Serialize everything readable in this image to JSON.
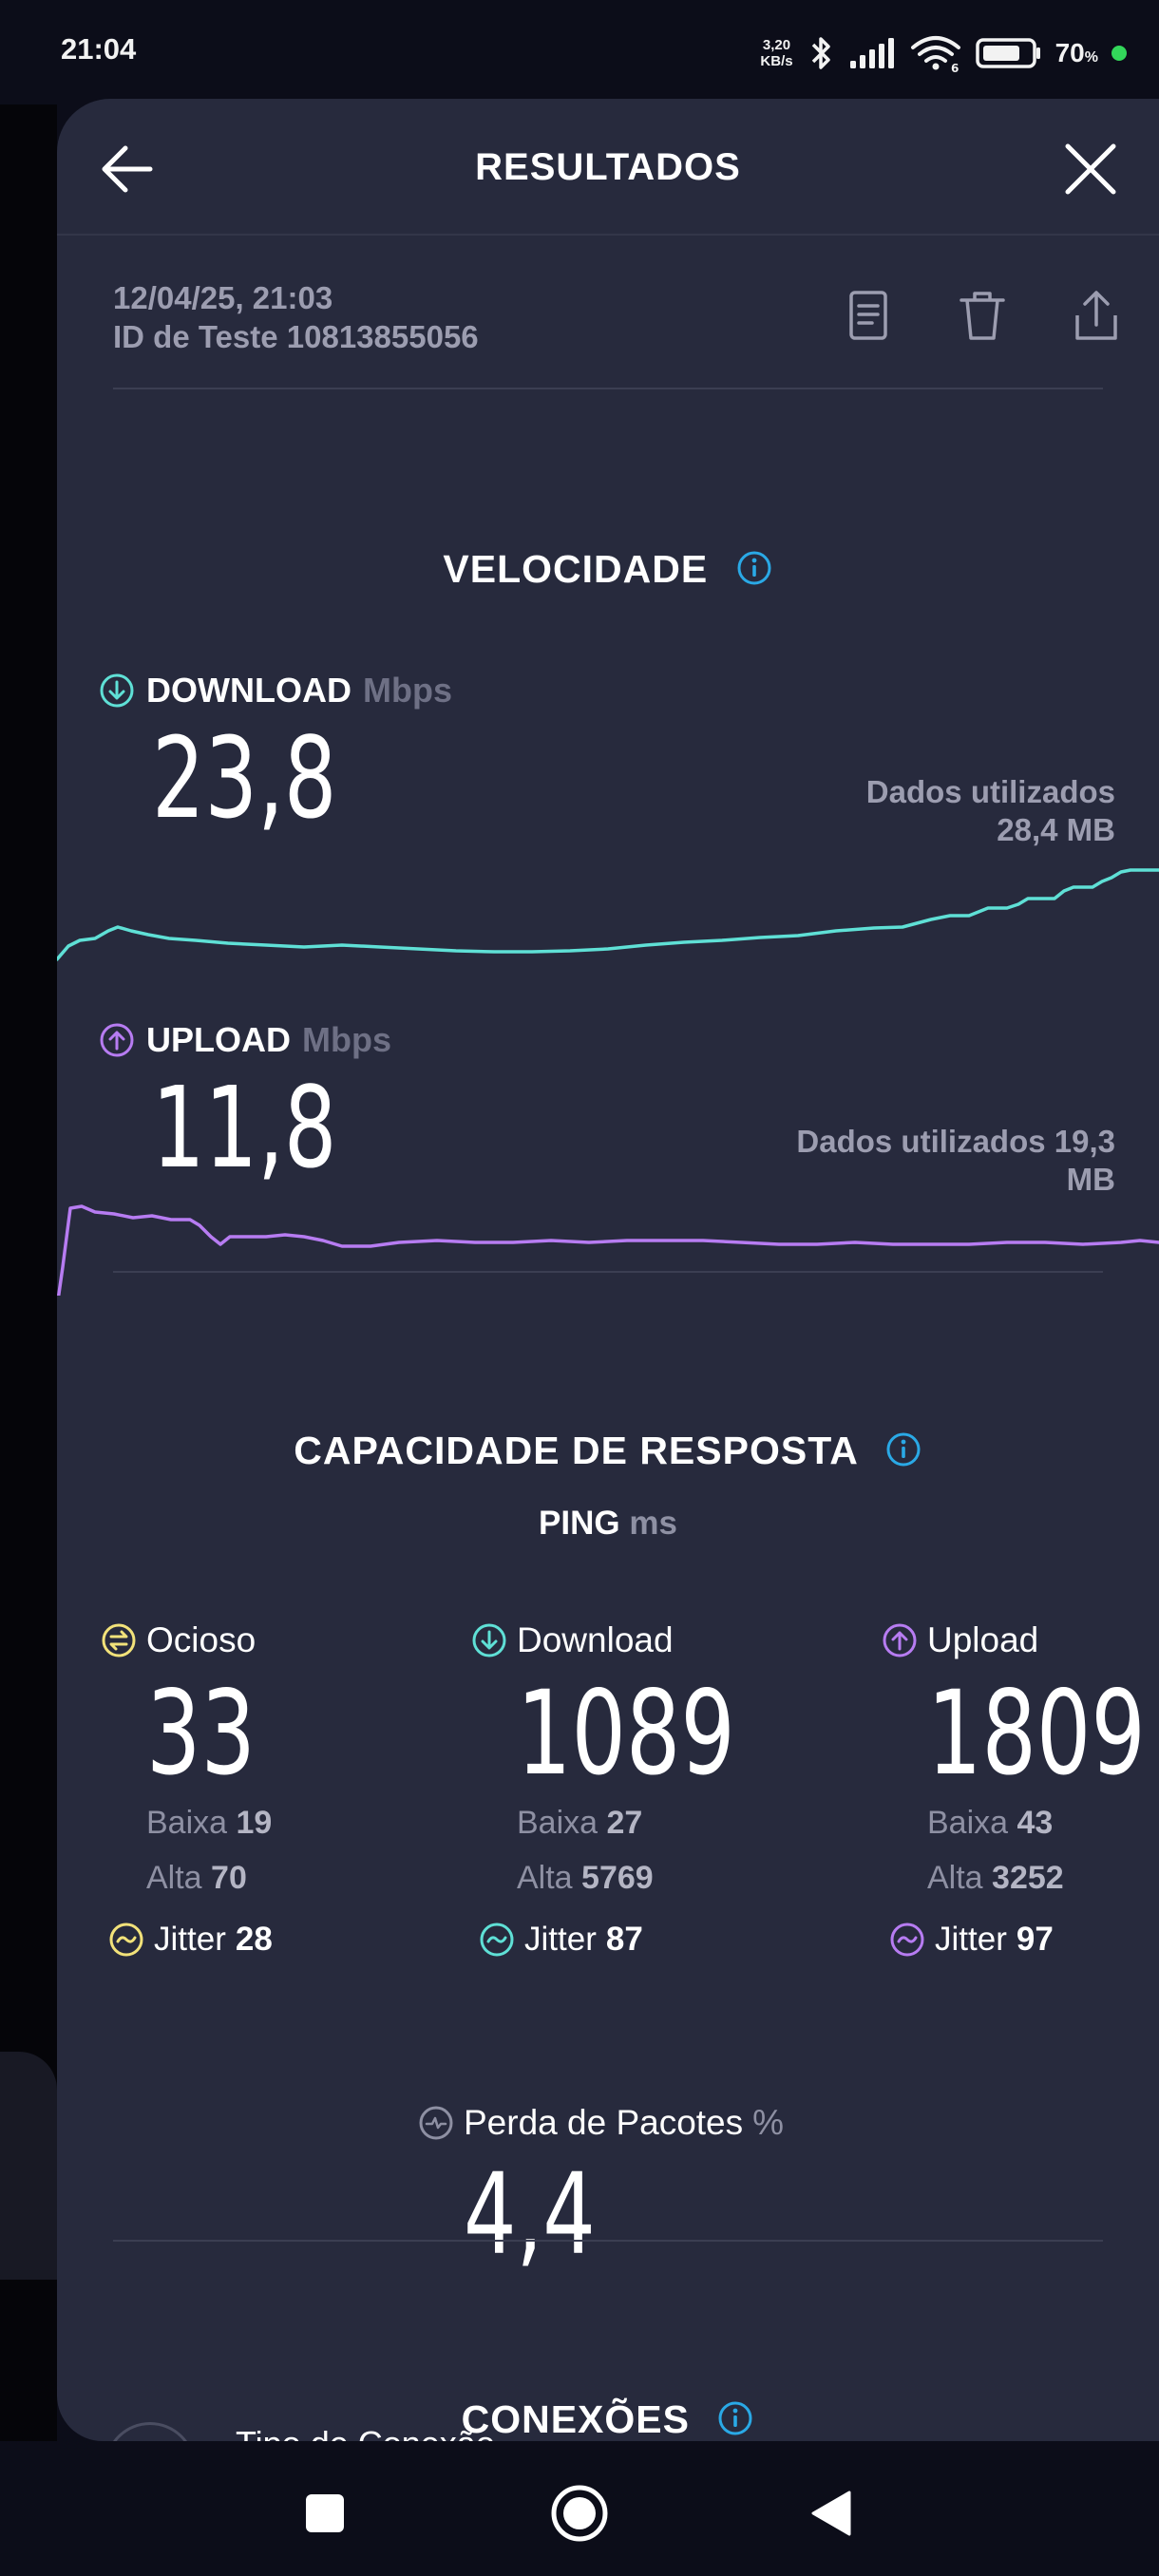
{
  "status_bar": {
    "time": "21:04",
    "net_speed_value": "3,20",
    "net_speed_unit": "KB/s",
    "battery_value": "70",
    "battery_unit": "%",
    "icons": [
      "bluetooth-icon",
      "signal-icon",
      "wifi-6-icon",
      "battery-icon"
    ]
  },
  "header": {
    "title": "RESULTADOS"
  },
  "test": {
    "datetime": "12/04/25, 21:03",
    "id_label": "ID de Teste 10813855056"
  },
  "speed": {
    "title": "VELOCIDADE",
    "download": {
      "label": "DOWNLOAD",
      "unit": "Mbps",
      "value": "23,8",
      "used_line1": "Dados utilizados",
      "used_line2": "28,4 MB",
      "color": "#5fe0d6"
    },
    "upload": {
      "label": "UPLOAD",
      "unit": "Mbps",
      "value": "11,8",
      "used_line1": "Dados utilizados 19,3",
      "used_line2": "MB",
      "color": "#b77cf2"
    }
  },
  "responsiveness": {
    "title": "CAPACIDADE DE RESPOSTA",
    "ping_label": "PING",
    "ping_unit": "ms",
    "columns": [
      {
        "label": "Ocioso",
        "value": "33",
        "low_label": "Baixa",
        "low": "19",
        "high_label": "Alta",
        "high": "70",
        "jitter_label": "Jitter",
        "jitter": "28",
        "color": "#f2e27a"
      },
      {
        "label": "Download",
        "value": "1089",
        "low_label": "Baixa",
        "low": "27",
        "high_label": "Alta",
        "high": "5769",
        "jitter_label": "Jitter",
        "jitter": "87",
        "color": "#5fe0d6"
      },
      {
        "label": "Upload",
        "value": "1809",
        "low_label": "Baixa",
        "low": "43",
        "high_label": "Alta",
        "high": "3252",
        "jitter_label": "Jitter",
        "jitter": "97",
        "color": "#b77cf2"
      }
    ],
    "packet_loss": {
      "label": "Perda de Pacotes",
      "unit": "%",
      "value": "4,4"
    }
  },
  "connections": {
    "title": "CONEXÕES",
    "row_label": "Tipo de Conexão"
  },
  "colors": {
    "accent_info": "#2aa9e6",
    "sheet_bg": "#272a3d"
  }
}
